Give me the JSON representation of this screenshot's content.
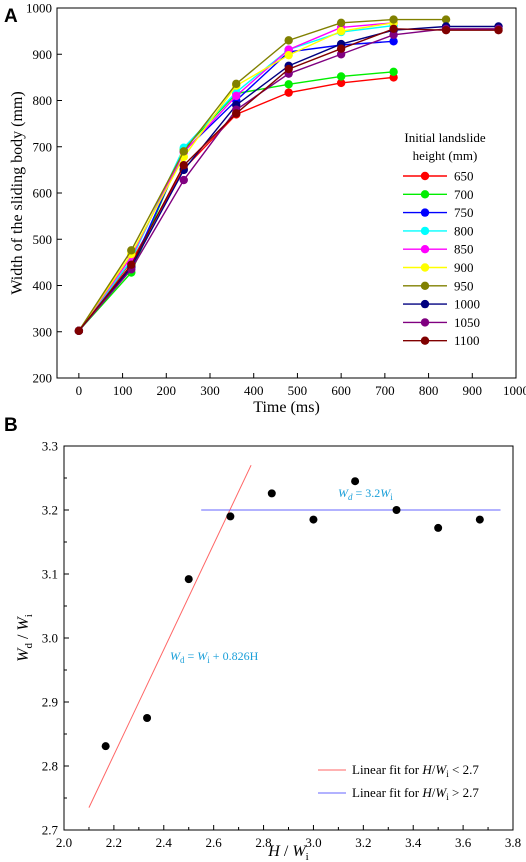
{
  "chart_data": [
    {
      "panel_label": "A",
      "type": "line",
      "xlabel": "Time (ms)",
      "ylabel": "Width of the sliding body (mm)",
      "xlim": [
        -50,
        1000
      ],
      "ylim": [
        200,
        1000
      ],
      "xticks": [
        0,
        100,
        200,
        300,
        400,
        500,
        600,
        700,
        800,
        900,
        1000
      ],
      "yticks": [
        200,
        300,
        400,
        500,
        600,
        700,
        800,
        900,
        1000
      ],
      "legend_title": [
        "Initial landslide",
        "height (mm)"
      ],
      "legend_position": "right",
      "series": [
        {
          "name": "650",
          "color": "#ff0000",
          "x": [
            0,
            120,
            240,
            360,
            480,
            600,
            720
          ],
          "y": [
            302,
            452,
            652,
            770,
            817,
            838,
            850
          ]
        },
        {
          "name": "700",
          "color": "#00ee00",
          "x": [
            0,
            120,
            240,
            360,
            480,
            600,
            720
          ],
          "y": [
            302,
            428,
            695,
            815,
            835,
            852,
            862
          ]
        },
        {
          "name": "750",
          "color": "#0000ff",
          "x": [
            0,
            120,
            240,
            360,
            480,
            600,
            720
          ],
          "y": [
            302,
            440,
            690,
            800,
            905,
            920,
            928
          ]
        },
        {
          "name": "800",
          "color": "#00ffff",
          "x": [
            0,
            120,
            240,
            360,
            480,
            600,
            720
          ],
          "y": [
            302,
            455,
            698,
            818,
            910,
            948,
            962
          ]
        },
        {
          "name": "850",
          "color": "#ff00ff",
          "x": [
            0,
            120,
            240,
            360,
            480,
            600,
            720
          ],
          "y": [
            302,
            462,
            688,
            810,
            910,
            958,
            968
          ]
        },
        {
          "name": "900",
          "color": "#ffff00",
          "x": [
            0,
            120,
            240,
            360,
            480,
            600,
            720
          ],
          "y": [
            302,
            468,
            678,
            832,
            898,
            950,
            968
          ]
        },
        {
          "name": "950",
          "color": "#808000",
          "x": [
            0,
            120,
            240,
            360,
            480,
            600,
            720,
            840
          ],
          "y": [
            302,
            476,
            690,
            836,
            930,
            968,
            975,
            975
          ]
        },
        {
          "name": "1000",
          "color": "#000080",
          "x": [
            0,
            120,
            240,
            360,
            480,
            600,
            720,
            840,
            960
          ],
          "y": [
            302,
            440,
            650,
            790,
            875,
            922,
            952,
            960,
            960
          ]
        },
        {
          "name": "1050",
          "color": "#800080",
          "x": [
            0,
            120,
            240,
            360,
            480,
            600,
            720,
            840,
            960
          ],
          "y": [
            302,
            435,
            628,
            780,
            858,
            900,
            942,
            955,
            955
          ]
        },
        {
          "name": "1100",
          "color": "#800000",
          "x": [
            0,
            120,
            240,
            360,
            480,
            600,
            720,
            840,
            960
          ],
          "y": [
            302,
            445,
            660,
            772,
            868,
            912,
            955,
            952,
            952
          ]
        }
      ]
    },
    {
      "panel_label": "B",
      "type": "scatter",
      "xlabel_main": "H",
      "xlabel_sep": " / ",
      "xlabel_main2": "W",
      "xlabel_sub": "i",
      "ylabel_main": "W",
      "ylabel_sub1": "d",
      "ylabel_sep": " / ",
      "ylabel_main2": "W",
      "ylabel_sub2": "i",
      "xlim": [
        2.0,
        3.8
      ],
      "ylim": [
        2.7,
        3.3
      ],
      "xticks": [
        "2.0",
        "2.2",
        "2.4",
        "2.6",
        "2.8",
        "3.0",
        "3.2",
        "3.4",
        "3.6",
        "3.8"
      ],
      "yticks": [
        "2.7",
        "2.8",
        "2.9",
        "3.0",
        "3.1",
        "3.2",
        "3.3"
      ],
      "points": {
        "x": [
          2.167,
          2.333,
          2.5,
          2.667,
          2.833,
          3.0,
          3.167,
          3.333,
          3.5,
          3.667
        ],
        "y": [
          2.831,
          2.875,
          3.092,
          3.19,
          3.226,
          3.185,
          3.245,
          3.2,
          3.172,
          3.185
        ]
      },
      "fits": [
        {
          "color": "#ff6666",
          "x": [
            2.1,
            2.75
          ],
          "y": [
            2.735,
            3.27
          ],
          "legend_prefix": "Linear fit for ",
          "legend_math": "H",
          "legend_sep": "/",
          "legend_math2": "W",
          "legend_sub": "i",
          "legend_cmp": " < 2.7",
          "eq_lhs": "W",
          "eq_lhs_sub": "d",
          "eq_mid": " = ",
          "eq_rhs": "W",
          "eq_rhs_sub": "i",
          "eq_tail": " + 0.826H"
        },
        {
          "color": "#6666ff",
          "x": [
            2.55,
            3.75
          ],
          "y": [
            3.2,
            3.2
          ],
          "legend_prefix": "Linear fit for ",
          "legend_math": "H",
          "legend_sep": "/",
          "legend_math2": "W",
          "legend_sub": "i",
          "legend_cmp": " > 2.7",
          "eq_lhs": "W",
          "eq_lhs_sub": "d",
          "eq_mid": " = 3.2",
          "eq_rhs": "W",
          "eq_rhs_sub": "i",
          "eq_tail": ""
        }
      ],
      "legend_position": "bottom-right"
    }
  ]
}
